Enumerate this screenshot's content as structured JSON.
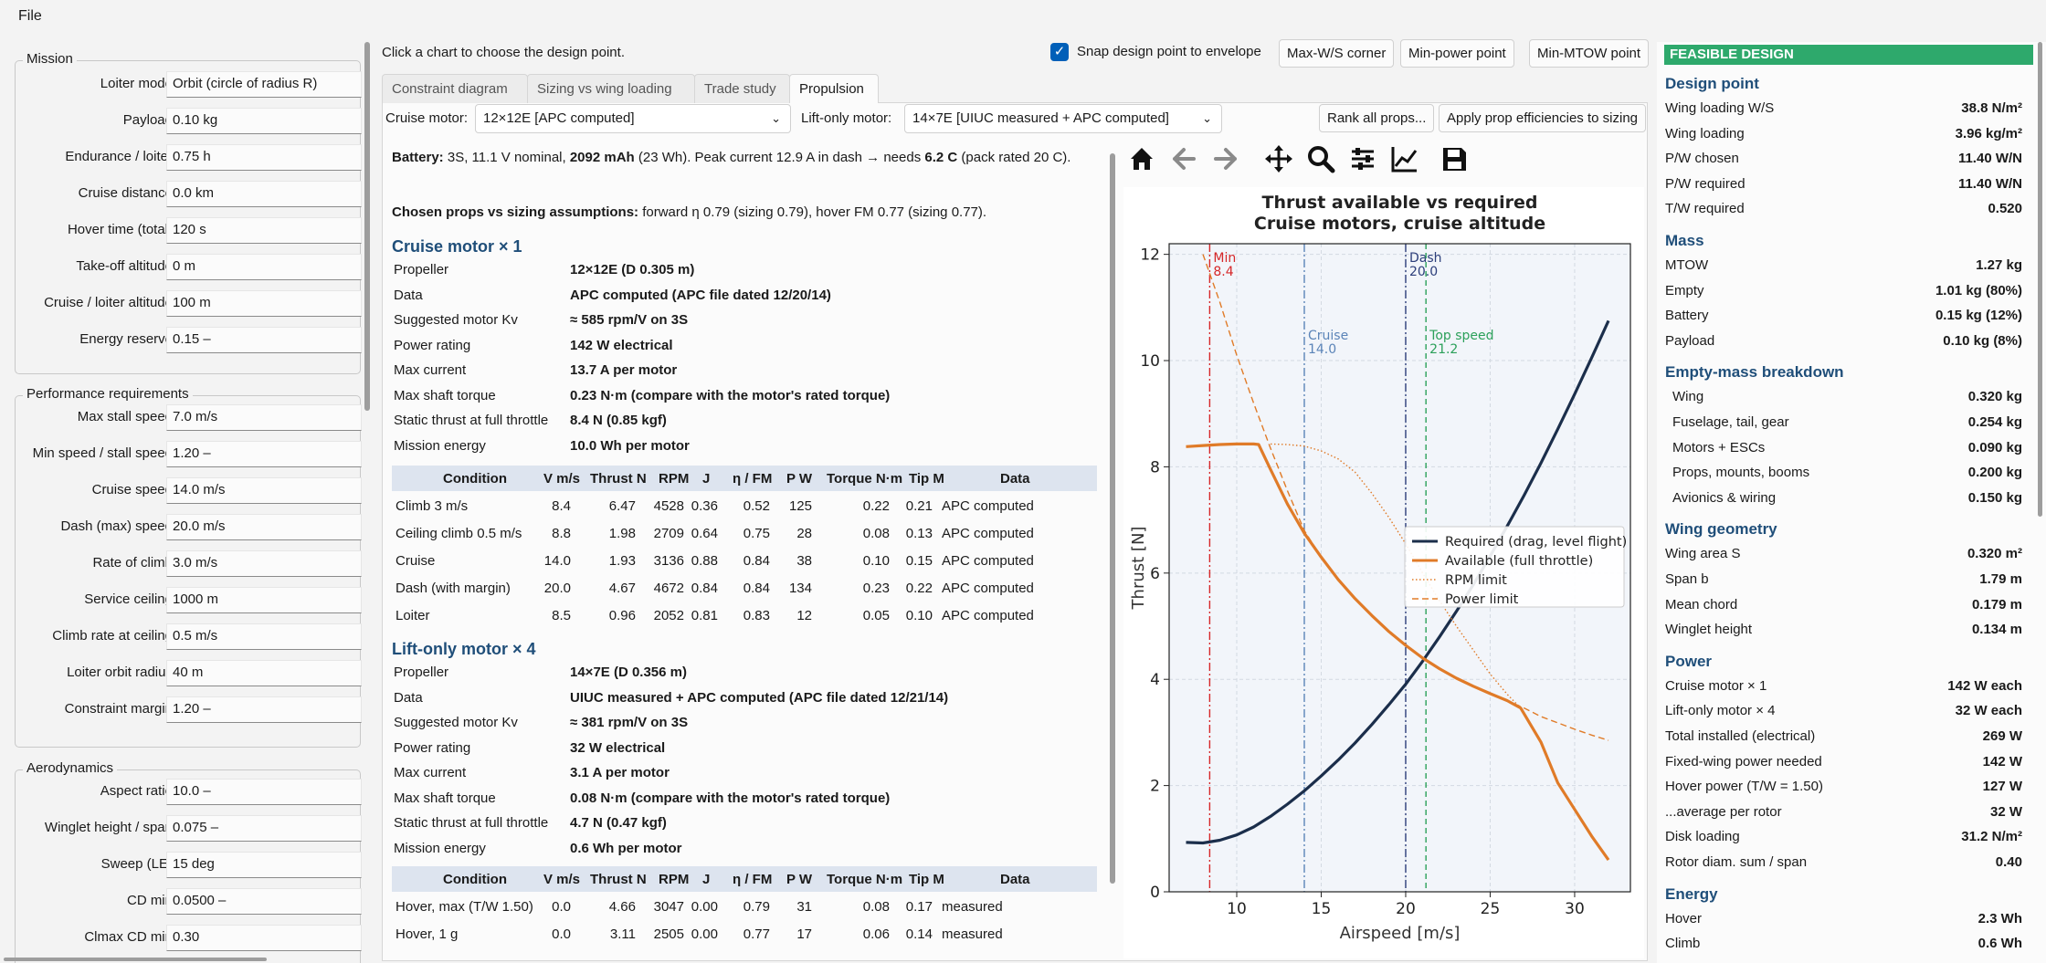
{
  "menu": {
    "file": "File"
  },
  "left": {
    "mission": {
      "title": "Mission",
      "fields": [
        {
          "label": "Loiter mode",
          "value": "Orbit (circle of radius R)"
        },
        {
          "label": "Payload",
          "value": "0.10  kg"
        },
        {
          "label": "Endurance / loiter",
          "value": "0.75  h"
        },
        {
          "label": "Cruise distance",
          "value": "0.0  km"
        },
        {
          "label": "Hover time (total)",
          "value": "120  s"
        },
        {
          "label": "Take-off altitude",
          "value": "0  m"
        },
        {
          "label": "Cruise / loiter altitude",
          "value": "100  m"
        },
        {
          "label": "Energy reserve",
          "value": "0.15  –"
        }
      ]
    },
    "performance": {
      "title": "Performance requirements",
      "fields": [
        {
          "label": "Max stall speed",
          "value": "7.0  m/s"
        },
        {
          "label": "Min speed / stall speed",
          "value": "1.20  –"
        },
        {
          "label": "Cruise speed",
          "value": "14.0  m/s"
        },
        {
          "label": "Dash (max) speed",
          "value": "20.0  m/s"
        },
        {
          "label": "Rate of climb",
          "value": "3.0  m/s"
        },
        {
          "label": "Service ceiling",
          "value": "1000  m"
        },
        {
          "label": "Climb rate at ceiling",
          "value": "0.5  m/s"
        },
        {
          "label": "Loiter orbit radius",
          "value": "40  m"
        },
        {
          "label": "Constraint margin",
          "value": "1.20  –"
        }
      ]
    },
    "aero": {
      "title": "Aerodynamics",
      "fields": [
        {
          "label": "Aspect ratio",
          "value": "10.0  –"
        },
        {
          "label": "Winglet height / span",
          "value": "0.075  –"
        },
        {
          "label": "Sweep (LE)",
          "value": "15  deg"
        },
        {
          "label": "CD min",
          "value": "0.0500  –"
        },
        {
          "label": "Clmax CD min",
          "value": "0.30"
        }
      ]
    }
  },
  "top": {
    "hint": "Click a chart to choose the design point.",
    "snap_label": "Snap design point to envelope",
    "snap_checked": true,
    "buttons": [
      "Max-W/S corner",
      "Min-power point",
      "Min-MTOW point"
    ]
  },
  "tabs": [
    "Constraint diagram",
    "Sizing vs wing loading",
    "Trade study",
    "Propulsion"
  ],
  "active_tab": "Propulsion",
  "motors": {
    "cruise_label": "Cruise motor:",
    "cruise_value": "12×12E  [APC computed]",
    "lift_label": "Lift-only motor:",
    "lift_value": "14×7E  [UIUC measured + APC computed]",
    "rank_button": "Rank all props...",
    "apply_button": "Apply prop efficiencies to sizing"
  },
  "report": {
    "battery_label": "Battery:",
    "battery_text_a": " 3S, 11.1 V nominal, ",
    "battery_mah": "2092 mAh",
    "battery_text_b": " (23 Wh). Peak current 12.9 A in dash → needs ",
    "battery_c": "6.2 C",
    "battery_text_c": " (pack rated 20 C).",
    "chosen_label": "Chosen props vs sizing assumptions:",
    "chosen_text": " forward η 0.79 (sizing 0.79), hover FM 0.77 (sizing 0.77).",
    "cruise_title": "Cruise motor × 1",
    "cruise_kv": [
      {
        "k": "Propeller",
        "v": "12×12E (D 0.305 m)"
      },
      {
        "k": "Data",
        "v": "APC computed (APC file dated 12/20/14)"
      },
      {
        "k": "Suggested motor Kv",
        "v": "≈ 585 rpm/V on 3S"
      },
      {
        "k": "Power rating",
        "v": "142 W electrical"
      },
      {
        "k": "Max current",
        "v": "13.7 A per motor"
      },
      {
        "k": "Max shaft torque",
        "v": "0.23 N·m (compare with the motor's rated torque)"
      },
      {
        "k": "Static thrust at full throttle",
        "v": "8.4 N (0.85 kgf)"
      },
      {
        "k": "Mission energy",
        "v": "10.0 Wh per motor"
      }
    ],
    "cruise_headers": [
      "Condition",
      "V m/s",
      "Thrust N",
      "RPM",
      "J",
      "η / FM",
      "P W",
      "Torque N·m",
      "Tip M",
      "Data"
    ],
    "cruise_rows": [
      [
        "Climb 3 m/s",
        "8.4",
        "6.47",
        "4528",
        "0.36",
        "0.52",
        "125",
        "0.22",
        "0.21",
        "APC computed"
      ],
      [
        "Ceiling climb 0.5 m/s",
        "8.8",
        "1.98",
        "2709",
        "0.64",
        "0.75",
        "28",
        "0.08",
        "0.13",
        "APC computed"
      ],
      [
        "Cruise",
        "14.0",
        "1.93",
        "3136",
        "0.88",
        "0.84",
        "38",
        "0.10",
        "0.15",
        "APC computed"
      ],
      [
        "Dash (with margin)",
        "20.0",
        "4.67",
        "4672",
        "0.84",
        "0.84",
        "134",
        "0.23",
        "0.22",
        "APC computed"
      ],
      [
        "Loiter",
        "8.5",
        "0.96",
        "2052",
        "0.81",
        "0.83",
        "12",
        "0.05",
        "0.10",
        "APC computed"
      ]
    ],
    "lift_title": "Lift-only motor × 4",
    "lift_kv": [
      {
        "k": "Propeller",
        "v": "14×7E (D 0.356 m)"
      },
      {
        "k": "Data",
        "v": "UIUC measured + APC computed (APC file dated 12/21/14)"
      },
      {
        "k": "Suggested motor Kv",
        "v": "≈ 381 rpm/V on 3S"
      },
      {
        "k": "Power rating",
        "v": "32 W electrical"
      },
      {
        "k": "Max current",
        "v": "3.1 A per motor"
      },
      {
        "k": "Max shaft torque",
        "v": "0.08 N·m (compare with the motor's rated torque)"
      },
      {
        "k": "Static thrust at full throttle",
        "v": "4.7 N (0.47 kgf)"
      },
      {
        "k": "Mission energy",
        "v": "0.6 Wh per motor"
      }
    ],
    "lift_headers": [
      "Condition",
      "V m/s",
      "Thrust N",
      "RPM",
      "J",
      "η / FM",
      "P W",
      "Torque N·m",
      "Tip M",
      "Data"
    ],
    "lift_rows": [
      [
        "Hover, max (T/W 1.50)",
        "0.0",
        "4.66",
        "3047",
        "0.00",
        "0.79",
        "31",
        "0.08",
        "0.17",
        "measured"
      ],
      [
        "Hover, 1 g",
        "0.0",
        "3.11",
        "2505",
        "0.00",
        "0.77",
        "17",
        "0.06",
        "0.14",
        "measured"
      ]
    ]
  },
  "toolbar": {
    "icons": [
      "home-icon",
      "back-arrow-icon",
      "forward-arrow-icon",
      "pan-icon",
      "zoom-icon",
      "configure-subplots-icon",
      "edit-axes-icon",
      "save-icon"
    ]
  },
  "chart_data": {
    "type": "line",
    "title": "Thrust available vs required",
    "subtitle": "Cruise motors, cruise altitude",
    "xlabel": "Airspeed  [m/s]",
    "ylabel": "Thrust  [N]",
    "xlim": [
      6,
      33.3
    ],
    "ylim": [
      0,
      12.2
    ],
    "xticks": [
      10,
      15,
      20,
      25,
      30
    ],
    "yticks": [
      0,
      2,
      4,
      6,
      8,
      10,
      12
    ],
    "grid": true,
    "legend_position": "center-right",
    "series": [
      {
        "name": "Required (drag, level flight)",
        "color": "#1b2e4b",
        "style": "solid",
        "x": [
          7,
          8,
          9,
          10,
          11,
          12,
          13,
          14,
          15,
          16,
          17,
          18,
          19,
          20,
          21,
          22,
          23,
          24,
          25,
          26,
          27,
          28,
          29,
          30,
          31,
          32
        ],
        "y": [
          0.93,
          0.92,
          0.97,
          1.07,
          1.22,
          1.42,
          1.65,
          1.9,
          2.18,
          2.48,
          2.8,
          3.15,
          3.52,
          3.91,
          4.34,
          4.8,
          5.28,
          5.78,
          6.32,
          6.88,
          7.46,
          8.07,
          8.71,
          9.37,
          10.05,
          10.75
        ]
      },
      {
        "name": "Available (full throttle)",
        "color": "#e07b28",
        "style": "solid",
        "x": [
          7,
          8,
          9,
          10,
          11,
          11.3,
          12,
          13,
          14,
          15,
          16,
          17,
          18,
          19,
          20,
          21,
          22,
          23,
          24,
          25,
          26,
          26.8,
          28,
          29,
          30,
          31,
          32
        ],
        "y": [
          8.38,
          8.4,
          8.42,
          8.43,
          8.43,
          8.42,
          7.95,
          7.3,
          6.75,
          6.3,
          5.88,
          5.52,
          5.2,
          4.9,
          4.64,
          4.4,
          4.2,
          4.02,
          3.87,
          3.73,
          3.6,
          3.46,
          2.82,
          2.05,
          1.55,
          1.05,
          0.6
        ]
      },
      {
        "name": "RPM limit",
        "color": "#e07b28",
        "style": "dotted",
        "x": [
          12,
          13,
          14,
          15,
          16,
          17,
          18,
          19,
          20,
          21,
          22,
          23,
          24,
          25,
          26,
          26.8
        ],
        "y": [
          8.43,
          8.42,
          8.39,
          8.3,
          8.15,
          7.9,
          7.5,
          7.05,
          6.55,
          6.0,
          5.48,
          5.0,
          4.55,
          4.1,
          3.72,
          3.46
        ]
      },
      {
        "name": "Power limit",
        "color": "#e07b28",
        "style": "dashed",
        "x": [
          8.0,
          9,
          10,
          11,
          12,
          13,
          14,
          15,
          16,
          17,
          18,
          19,
          20,
          21,
          22,
          23,
          24,
          25,
          26,
          27,
          28,
          29,
          30,
          31,
          32
        ],
        "y": [
          12.0,
          11.1,
          10.1,
          9.2,
          8.35,
          7.55,
          6.8,
          6.3,
          5.88,
          5.52,
          5.2,
          4.9,
          4.64,
          4.4,
          4.2,
          4.02,
          3.87,
          3.73,
          3.6,
          3.46,
          3.3,
          3.18,
          3.06,
          2.95,
          2.85
        ]
      }
    ],
    "vlines": [
      {
        "label": "Min",
        "value": "8.4",
        "x": 8.4,
        "color": "#d62728",
        "style": "dashdot"
      },
      {
        "label": "Cruise",
        "value": "14.0",
        "x": 14.0,
        "color": "#5b84b8",
        "style": "dashdot"
      },
      {
        "label": "Dash",
        "value": "20.0",
        "x": 20.0,
        "color": "#2c3e7a",
        "style": "dashdot"
      },
      {
        "label": "Top speed",
        "value": "21.2",
        "x": 21.2,
        "color": "#2ca05a",
        "style": "dashed"
      }
    ]
  },
  "right": {
    "banner": "FEASIBLE DESIGN",
    "sections": [
      {
        "title": "Design point",
        "rows": [
          {
            "k": "Wing loading W/S",
            "v": "38.8 N/m²"
          },
          {
            "k": "Wing loading",
            "v": "3.96 kg/m²"
          },
          {
            "k": "P/W chosen",
            "v": "11.40 W/N"
          },
          {
            "k": "P/W required",
            "v": "11.40 W/N"
          },
          {
            "k": "T/W required",
            "v": "0.520"
          }
        ]
      },
      {
        "title": "Mass",
        "rows": [
          {
            "k": "MTOW",
            "v": "1.27 kg"
          },
          {
            "k": "Empty",
            "v": "1.01 kg (80%)"
          },
          {
            "k": "Battery",
            "v": "0.15 kg (12%)"
          },
          {
            "k": "Payload",
            "v": "0.10 kg (8%)"
          }
        ]
      },
      {
        "title": "Empty-mass breakdown",
        "indent": true,
        "rows": [
          {
            "k": "Wing",
            "v": "0.320 kg"
          },
          {
            "k": "Fuselage, tail, gear",
            "v": "0.254 kg"
          },
          {
            "k": "Motors + ESCs",
            "v": "0.090 kg"
          },
          {
            "k": "Props, mounts, booms",
            "v": "0.200 kg"
          },
          {
            "k": "Avionics & wiring",
            "v": "0.150 kg"
          }
        ]
      },
      {
        "title": "Wing geometry",
        "rows": [
          {
            "k": "Wing area S",
            "v": "0.320 m²"
          },
          {
            "k": "Span b",
            "v": "1.79 m"
          },
          {
            "k": "Mean chord",
            "v": "0.179 m"
          },
          {
            "k": "Winglet height",
            "v": "0.134 m"
          }
        ]
      },
      {
        "title": "Power",
        "rows": [
          {
            "k": "Cruise motor × 1",
            "v": "142 W each"
          },
          {
            "k": "Lift-only motor × 4",
            "v": "32 W each"
          },
          {
            "k": "Total installed (electrical)",
            "v": "269 W"
          },
          {
            "k": "Fixed-wing power needed",
            "v": "142 W"
          },
          {
            "k": "Hover power (T/W = 1.50)",
            "v": "127 W"
          },
          {
            "k": "...average per rotor",
            "v": "32 W"
          },
          {
            "k": "Disk loading",
            "v": "31.2 N/m²"
          },
          {
            "k": "Rotor diam. sum / span",
            "v": "0.40"
          }
        ]
      },
      {
        "title": "Energy",
        "rows": [
          {
            "k": "Hover",
            "v": "2.3 Wh"
          },
          {
            "k": "Climb",
            "v": "0.6 Wh"
          }
        ]
      }
    ]
  }
}
